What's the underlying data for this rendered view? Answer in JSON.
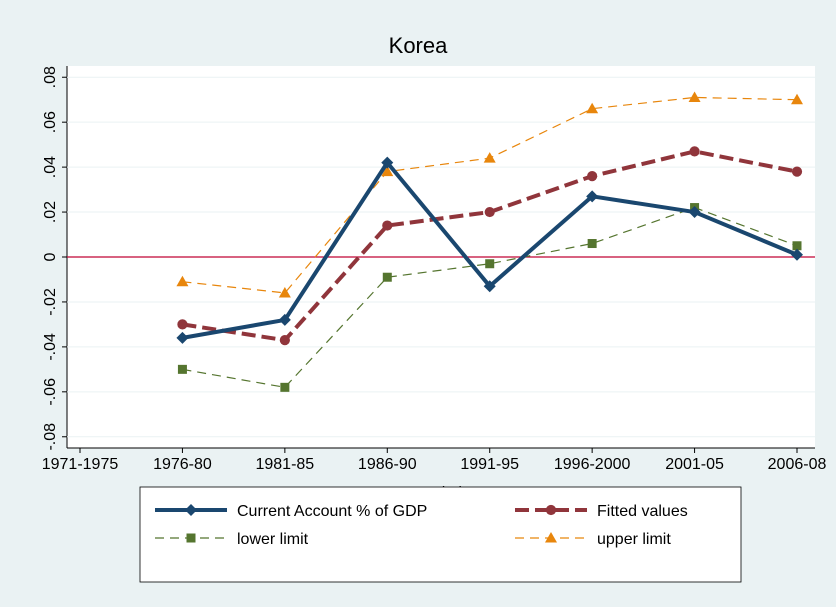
{
  "chart_data": {
    "type": "line",
    "title": "Korea",
    "x_label": "period",
    "categories": [
      "1971-1975",
      "1976-80",
      "1981-85",
      "1986-90",
      "1991-95",
      "1996-2000",
      "2001-05",
      "2006-08"
    ],
    "series": [
      {
        "name": "Current Account % of GDP",
        "color": "#1a476f",
        "style": "solid",
        "marker": "diamond",
        "values": [
          null,
          -0.036,
          -0.028,
          0.042,
          -0.013,
          0.027,
          0.02,
          0.001
        ]
      },
      {
        "name": "Fitted values",
        "color": "#90353b",
        "style": "dashed",
        "marker": "circle",
        "values": [
          null,
          -0.03,
          -0.037,
          0.014,
          0.02,
          0.036,
          0.047,
          0.038
        ]
      },
      {
        "name": "lower limit",
        "color": "#55752f",
        "style": "dashed",
        "marker": "square",
        "values": [
          null,
          -0.05,
          -0.058,
          -0.009,
          -0.003,
          0.006,
          0.022,
          0.005
        ]
      },
      {
        "name": "upper limit",
        "color": "#e8860c",
        "style": "dashed",
        "marker": "triangle",
        "values": [
          null,
          -0.011,
          -0.016,
          0.038,
          0.044,
          0.066,
          0.071,
          0.07
        ]
      }
    ],
    "ylim": [
      -0.085,
      0.085
    ],
    "yticks": [
      {
        "value": -0.08,
        "label": "-.08"
      },
      {
        "value": -0.06,
        "label": "-.06"
      },
      {
        "value": -0.04,
        "label": "-.04"
      },
      {
        "value": -0.02,
        "label": "-.02"
      },
      0,
      {
        "value": 0.02,
        "label": ".02"
      },
      {
        "value": 0.04,
        "label": ".04"
      },
      {
        "value": 0.06,
        "label": ".06"
      },
      {
        "value": 0.08,
        "label": ".08"
      }
    ],
    "grid": true,
    "reference_line": {
      "value": 0,
      "color": "#c10534"
    },
    "legend": "bottom"
  }
}
